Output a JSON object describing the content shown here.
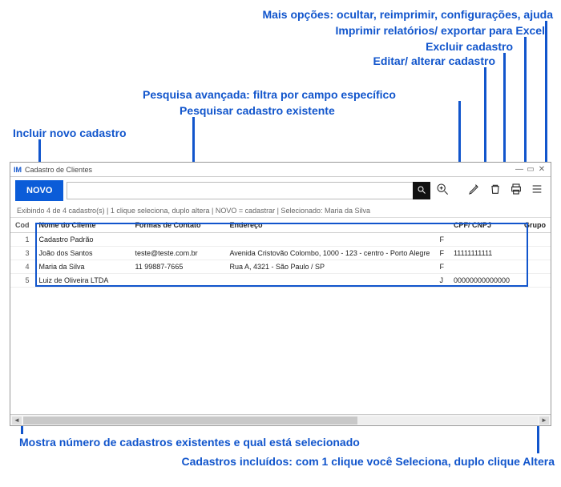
{
  "colors": {
    "accent": "#1155cc",
    "novo_bg": "#0b5cd8"
  },
  "callouts": {
    "more": "Mais opções: ocultar, reimprimir, configurações, ajuda",
    "print": "Imprimir relatórios/ exportar para Excel",
    "delete": "Excluir cadastro",
    "edit": "Editar/ alterar cadastro",
    "adv": "Pesquisa avançada: filtra por campo específico",
    "search": "Pesquisar cadastro existente",
    "new": "Incluir novo cadastro",
    "status": "Mostra número de cadastros existentes e qual está selecionado",
    "rows": "Cadastros incluídos: com 1 clique você Seleciona, duplo clique Altera"
  },
  "window": {
    "title": "Cadastro de Clientes",
    "logo": "IM"
  },
  "toolbar": {
    "new_label": "NOVO",
    "search_placeholder": ""
  },
  "status": "Exibindo 4 de 4 cadastro(s)  |  1 clique seleciona, duplo altera  |  NOVO = cadastrar  |  Selecionado: Maria da Silva",
  "grid": {
    "columns": {
      "cod": "Cod",
      "nome": "Nome do Cliente",
      "contato": "Formas de Contato",
      "endereco": "Endereço",
      "tipo": "",
      "cpf": "CPF/ CNPJ",
      "grupo": "Grupo"
    },
    "col_widths": {
      "cod": "24px",
      "nome": "148px",
      "contato": "150px",
      "endereco": "190px",
      "tipo": "14px",
      "cpf": "96px",
      "grupo": "auto"
    },
    "rows": [
      {
        "cod": "1",
        "nome": "Cadastro Padrão",
        "contato": "",
        "endereco": "",
        "tipo": "F",
        "cpf": "",
        "grupo": ""
      },
      {
        "cod": "3",
        "nome": "João dos Santos",
        "contato": "teste@teste.com.br",
        "endereco": "Avenida Cristovão Colombo, 1000 - 123 - centro - Porto Alegre",
        "tipo": "F",
        "cpf": "11111111111",
        "grupo": ""
      },
      {
        "cod": "4",
        "nome": "Maria da Silva",
        "contato": "11 99887-7665",
        "endereco": "Rua A, 4321 - São Paulo / SP",
        "tipo": "F",
        "cpf": "",
        "grupo": ""
      },
      {
        "cod": "5",
        "nome": "Luiz de Oliveira LTDA",
        "contato": "",
        "endereco": "",
        "tipo": "J",
        "cpf": "00000000000000",
        "grupo": ""
      }
    ]
  }
}
